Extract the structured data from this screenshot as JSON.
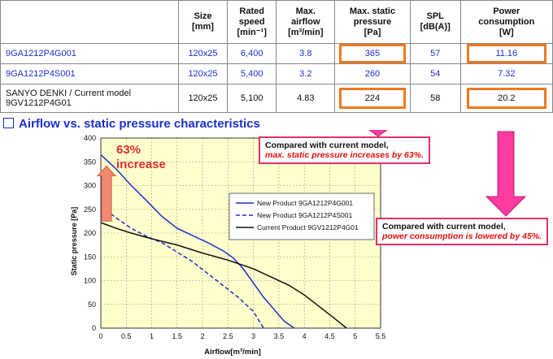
{
  "table": {
    "headers": [
      "",
      "Size\n[mm]",
      "Rated\nspeed\n[min⁻¹]",
      "Max.\nairflow\n[m³/min]",
      "Max. static\npressure\n[Pa]",
      "SPL\n[dB(A)]",
      "Power\nconsumption\n[W]"
    ],
    "rows": [
      {
        "model": "9GA1212P4G001",
        "size": "120x25",
        "speed": "6,400",
        "airflow": "3.8",
        "pressure": "365",
        "spl": "57",
        "power": "11.16"
      },
      {
        "model": "9GA1212P4S001",
        "size": "120x25",
        "speed": "5,400",
        "airflow": "3.2",
        "pressure": "260",
        "spl": "54",
        "power": "7.32"
      },
      {
        "model_line1": "SANYO DENKI / Current model",
        "model_line2": "9GV1212P4G01",
        "size": "120x25",
        "speed": "5,100",
        "airflow": "4.83",
        "pressure": "224",
        "spl": "58",
        "power": "20.2"
      }
    ]
  },
  "section_title": "Airflow  vs. static pressure characteristics",
  "callouts": {
    "pressure": {
      "line1": "Compared with current model,",
      "line2": "max. static pressure increases by 63%."
    },
    "power": {
      "line1": "Compared with current model,",
      "line2": "power consumption is lowered by 45%."
    }
  },
  "increase_label": {
    "line1": "63%",
    "line2": "increase"
  },
  "colors": {
    "new_product": "#1a2fd0",
    "current_product": "#111111",
    "highlight": "#f07820",
    "callout_border": "#e0306b",
    "arrow": "#ff3aa0",
    "plot_bg": "#ffffcc"
  },
  "chart_data": {
    "type": "line",
    "xlabel": "Airflow[m³/min]",
    "ylabel": "Static pressure [Pa]",
    "xlim": [
      0,
      5.5
    ],
    "ylim": [
      0,
      400
    ],
    "xticks": [
      0,
      0.5,
      1,
      1.5,
      2,
      2.5,
      3,
      3.5,
      4,
      4.5,
      5,
      5.5
    ],
    "yticks": [
      0,
      50,
      100,
      150,
      200,
      250,
      300,
      350,
      400
    ],
    "grid": true,
    "legend_position": "center-right",
    "series": [
      {
        "name": "New Product  9GA1212P4G001",
        "style": "solid",
        "color": "#1a2fd0",
        "points": [
          [
            0,
            365
          ],
          [
            0.3,
            335
          ],
          [
            0.6,
            300
          ],
          [
            0.9,
            268
          ],
          [
            1.2,
            235
          ],
          [
            1.5,
            210
          ],
          [
            1.8,
            195
          ],
          [
            2.1,
            180
          ],
          [
            2.4,
            163
          ],
          [
            2.6,
            148
          ],
          [
            2.8,
            125
          ],
          [
            3.0,
            95
          ],
          [
            3.2,
            65
          ],
          [
            3.4,
            40
          ],
          [
            3.6,
            15
          ],
          [
            3.8,
            0
          ]
        ]
      },
      {
        "name": "New Product  9GA1212P4S001",
        "style": "dashed",
        "color": "#1a2fd0",
        "points": [
          [
            0,
            258
          ],
          [
            0.3,
            232
          ],
          [
            0.6,
            210
          ],
          [
            0.9,
            193
          ],
          [
            1.2,
            180
          ],
          [
            1.5,
            160
          ],
          [
            1.8,
            140
          ],
          [
            2.1,
            115
          ],
          [
            2.4,
            90
          ],
          [
            2.7,
            65
          ],
          [
            3.0,
            35
          ],
          [
            3.2,
            0
          ]
        ]
      },
      {
        "name": "Current Product 9GV1212P4G01",
        "style": "solid",
        "color": "#111111",
        "points": [
          [
            0,
            222
          ],
          [
            0.3,
            210
          ],
          [
            0.6,
            200
          ],
          [
            1.0,
            188
          ],
          [
            1.5,
            175
          ],
          [
            2.0,
            158
          ],
          [
            2.5,
            143
          ],
          [
            3.0,
            125
          ],
          [
            3.4,
            105
          ],
          [
            3.7,
            90
          ],
          [
            4.0,
            70
          ],
          [
            4.3,
            45
          ],
          [
            4.6,
            20
          ],
          [
            4.83,
            0
          ]
        ]
      }
    ]
  }
}
